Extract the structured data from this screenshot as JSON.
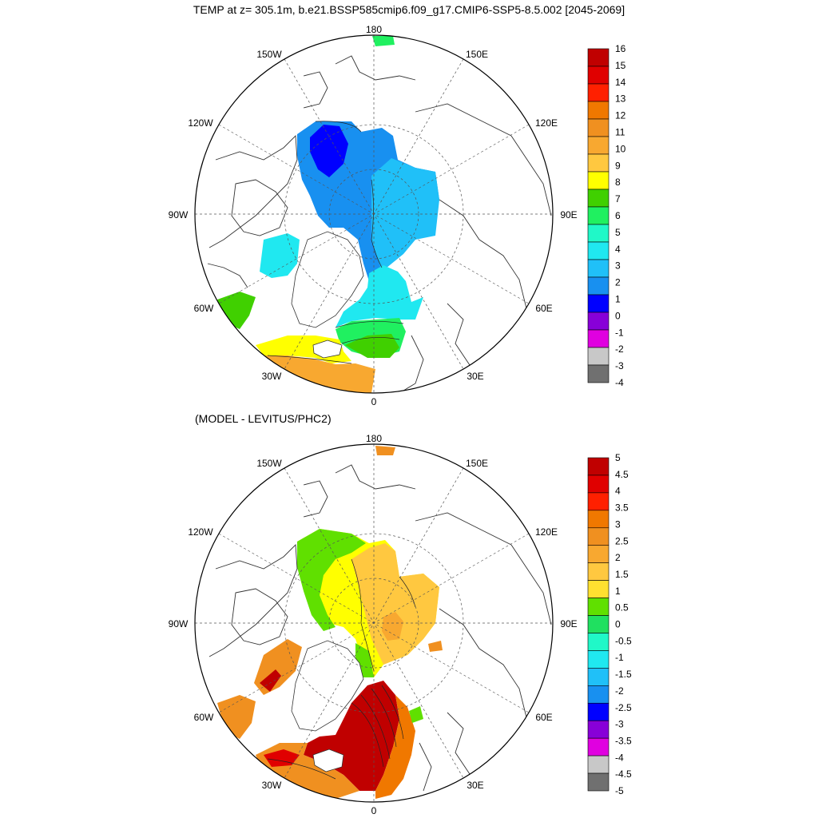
{
  "title": "TEMP at z= 305.1m, b.e21.BSSP585cmip6.f09_g17.CMIP6-SSP5-8.5.002 [2045-2069]",
  "diff_title": "(MODEL - LEVITUS/PHC2)",
  "lon_labels": {
    "lon_180": "180",
    "lon_150w": "150W",
    "lon_150e": "150E",
    "lon_120w": "120W",
    "lon_120e": "120E",
    "lon_90w": "90W",
    "lon_90e": "90E",
    "lon_60w": "60W",
    "lon_60e": "60E",
    "lon_30w": "30W",
    "lon_30e": "30E",
    "lon_0": "0"
  },
  "chart_data": [
    {
      "type": "heatmap",
      "title": "TEMP at z= 305.1m, b.e21.BSSP585cmip6.f09_g17.CMIP6-SSP5-8.5.002 [2045-2069]",
      "projection": "north polar stereographic",
      "units": "degC",
      "colorbar": {
        "levels": [
          "16",
          "15",
          "14",
          "13",
          "12",
          "11",
          "10",
          "9",
          "8",
          "7",
          "6",
          "5",
          "4",
          "3",
          "2",
          "1",
          "0",
          "-1",
          "-2",
          "-3",
          "-4"
        ],
        "colors": [
          "#c00000",
          "#e00000",
          "#ff2000",
          "#f07800",
          "#f09020",
          "#f8a830",
          "#ffc840",
          "#ffff00",
          "#40d000",
          "#20f060",
          "#20f8c8",
          "#20e8f0",
          "#20c0f8",
          "#1890f0",
          "#0000ff",
          "#8800d8",
          "#e000e0",
          "#c8c8c8",
          "#707070"
        ]
      }
    },
    {
      "type": "heatmap",
      "title": "(MODEL - LEVITUS/PHC2)",
      "projection": "north polar stereographic",
      "units": "degC",
      "colorbar": {
        "levels": [
          "5",
          "4.5",
          "4",
          "3.5",
          "3",
          "2.5",
          "2",
          "1.5",
          "1",
          "0.5",
          "0",
          "-0.5",
          "-1",
          "-1.5",
          "-2",
          "-2.5",
          "-3",
          "-3.5",
          "-4",
          "-4.5",
          "-5"
        ],
        "colors": [
          "#c00000",
          "#e00000",
          "#ff2000",
          "#f07800",
          "#f09020",
          "#f8a830",
          "#ffc840",
          "#ffe030",
          "#60e000",
          "#20e060",
          "#20f8c8",
          "#20e8f0",
          "#20c0f8",
          "#1890f0",
          "#0000ff",
          "#8800d8",
          "#e000e0",
          "#c8c8c8",
          "#707070"
        ]
      }
    }
  ]
}
